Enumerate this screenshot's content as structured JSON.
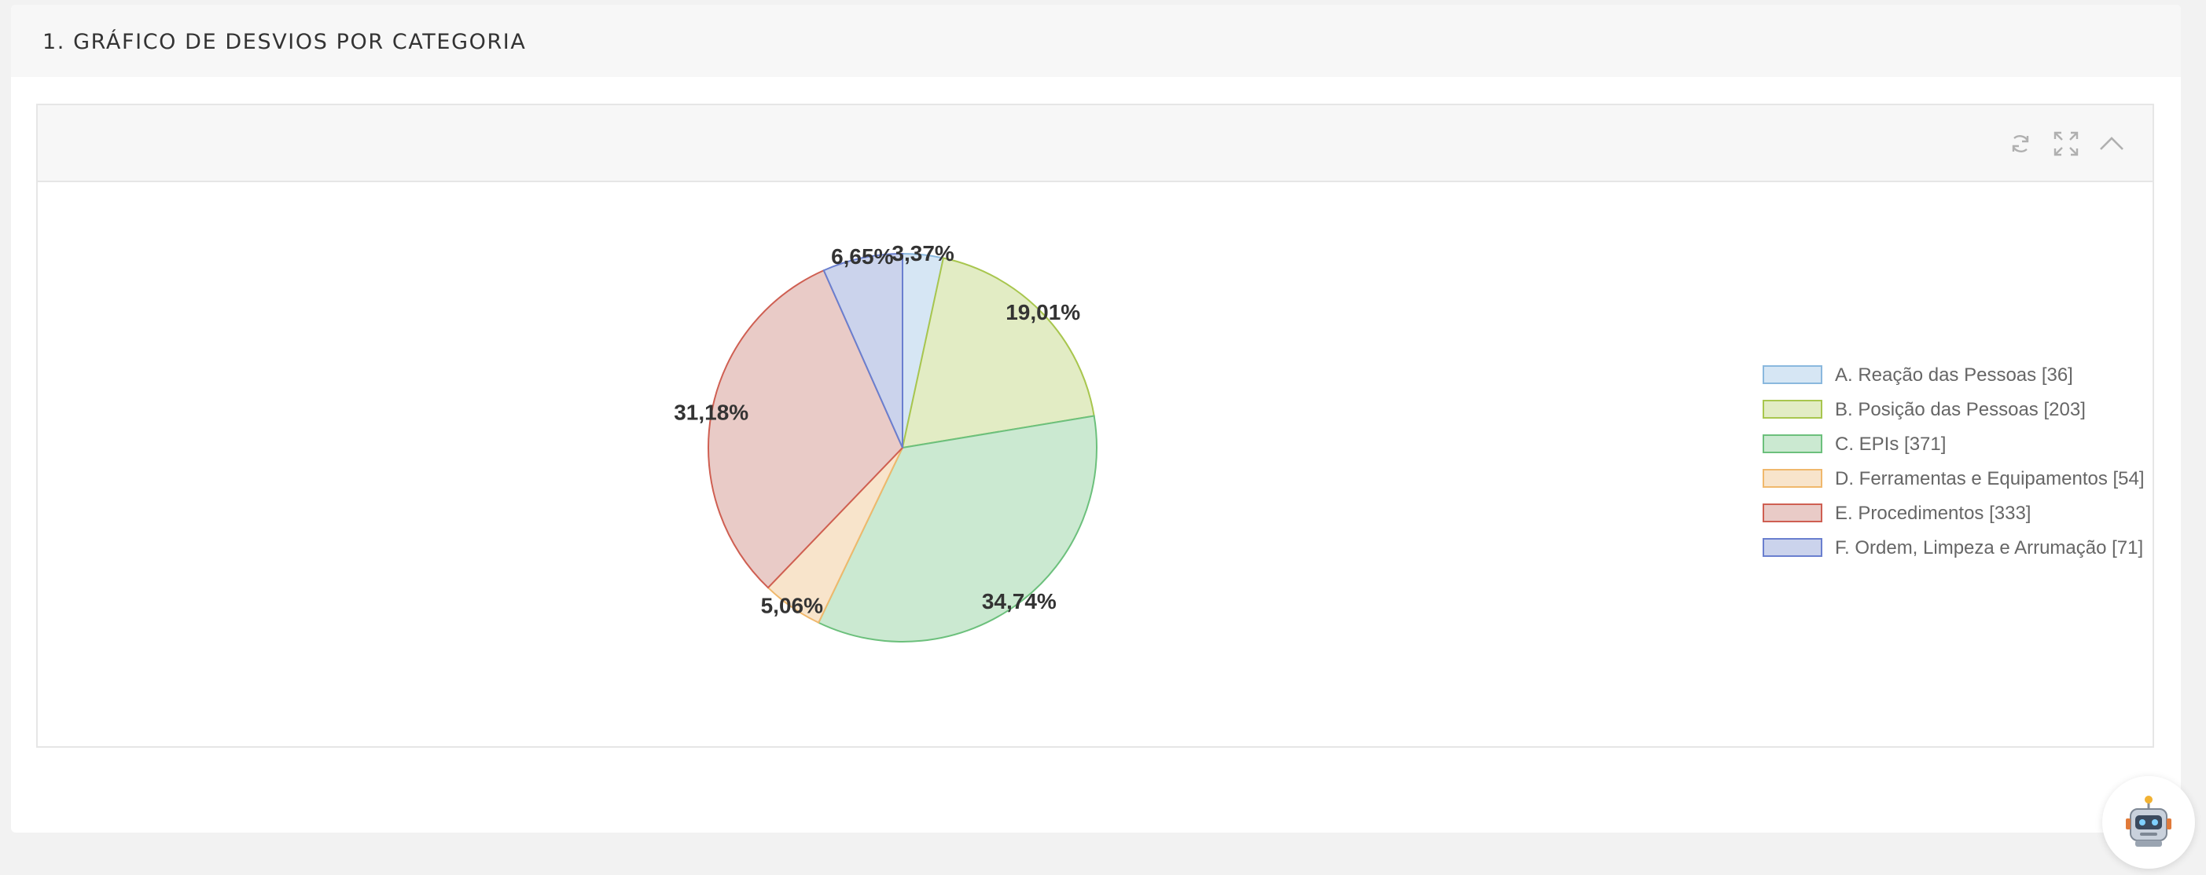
{
  "section": {
    "title": "1. GRÁFICO DE DESVIOS POR CATEGORIA"
  },
  "panel": {
    "tools": [
      "refresh-icon",
      "expand-icon",
      "collapse-icon"
    ]
  },
  "chart_data": {
    "type": "pie",
    "title": "",
    "categories": [
      "A. Reação das Pessoas",
      "B. Posição das Pessoas",
      "C. EPIs",
      "D. Ferramentas e Equipamentos",
      "E. Procedimentos",
      "F. Ordem, Limpeza e Arrumação"
    ],
    "values": [
      36,
      203,
      371,
      54,
      333,
      71
    ],
    "percent_labels": [
      "3,37%",
      "19,01%",
      "34,74%",
      "5,06%",
      "31,18%",
      "6,65%"
    ],
    "legend_labels": [
      "A. Reação das Pessoas [36]",
      "B. Posição das Pessoas [203]",
      "C. EPIs [371]",
      "D. Ferramentas e Equipamentos [54]",
      "E. Procedimentos [333]",
      "F. Ordem, Limpeza e Arrumação [71]"
    ],
    "fill_colors": [
      "#d6e6f4",
      "#e2ecc4",
      "#cbe9d1",
      "#f8e4cb",
      "#e9cbc7",
      "#cbd3ec"
    ],
    "border_colors": [
      "#8ab8de",
      "#a8c64e",
      "#6cc07c",
      "#f0b86c",
      "#cf5f52",
      "#6a7fcf"
    ],
    "legend_position": "right"
  },
  "assistant": {
    "icon": "robot-icon"
  }
}
